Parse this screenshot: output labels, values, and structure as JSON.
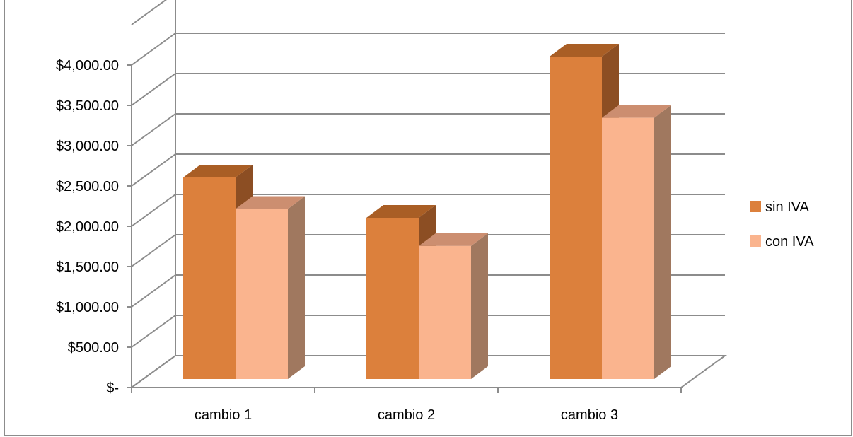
{
  "chart_data": {
    "type": "bar",
    "style": "3d-clustered-column",
    "categories": [
      "cambio 1",
      "cambio 2",
      "cambio 3"
    ],
    "series": [
      {
        "name": "sin IVA",
        "values": [
          2500,
          2000,
          4000
        ]
      },
      {
        "name": "con IVA",
        "values": [
          2110,
          1650,
          3240
        ]
      }
    ],
    "y_ticks": [
      {
        "value": 0,
        "label": "$-"
      },
      {
        "value": 500,
        "label": "$500.00"
      },
      {
        "value": 1000,
        "label": "$1,000.00"
      },
      {
        "value": 1500,
        "label": "$1,500.00"
      },
      {
        "value": 2000,
        "label": "$2,000.00"
      },
      {
        "value": 2500,
        "label": "$2,500.00"
      },
      {
        "value": 3000,
        "label": "$3,000.00"
      },
      {
        "value": 3500,
        "label": "$3,500.00"
      },
      {
        "value": 4000,
        "label": "$4,000.00"
      }
    ],
    "ylim": [
      0,
      4000
    ],
    "grid": true,
    "legend": "right",
    "colors": {
      "sin IVA": {
        "front": "#DC803C",
        "top": "#A95E25",
        "side": "#8C4E23"
      },
      "con IVA": {
        "front": "#FAB48E",
        "top": "#CC8E70",
        "side": "#A0785F"
      },
      "grid": "#8c8c8c"
    }
  }
}
